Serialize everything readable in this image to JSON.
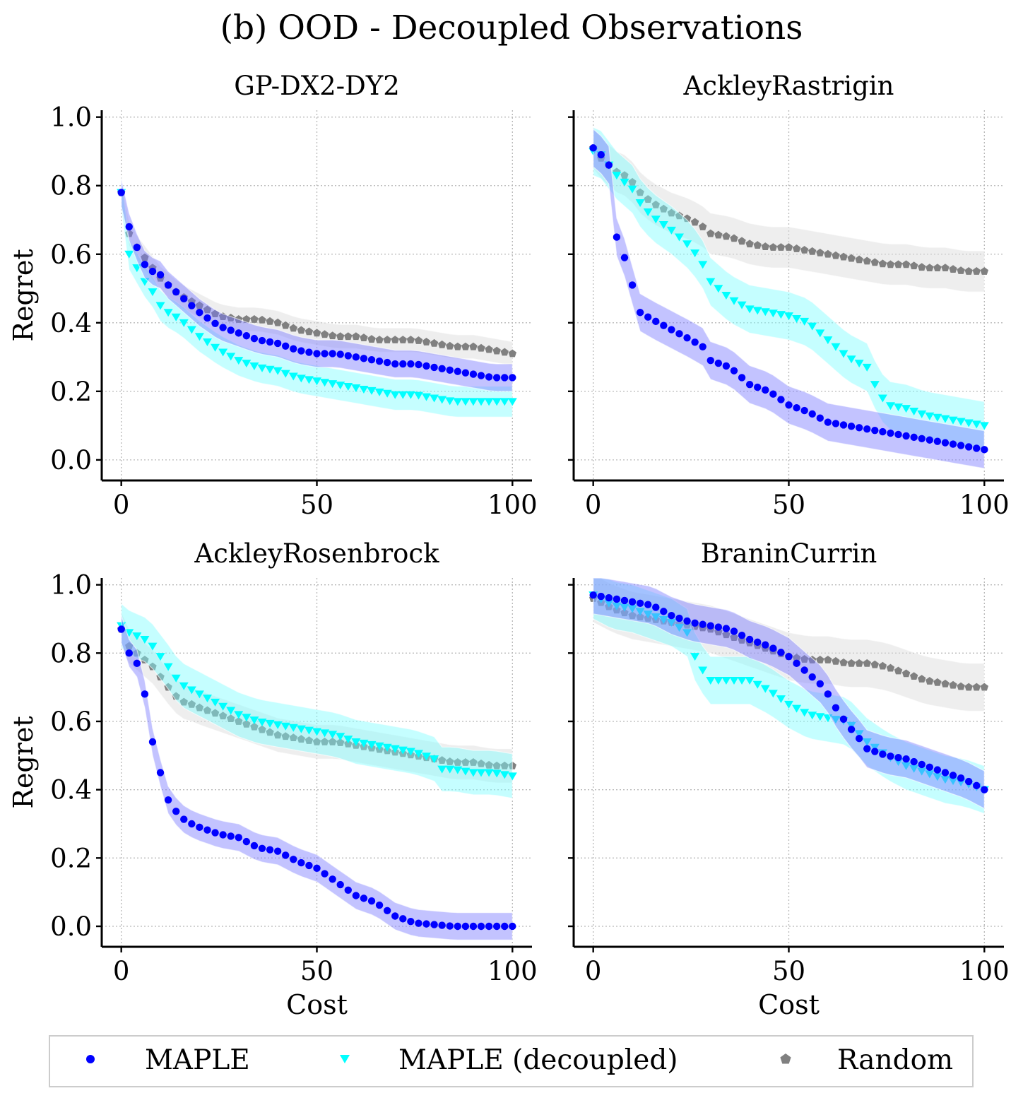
{
  "chart_data": {
    "type": "line",
    "title": "(b) OOD - Decoupled Observations",
    "xlabel": "Cost",
    "ylabel": "Regret",
    "xlim": [
      -5,
      105
    ],
    "ylim": [
      -0.06,
      1.02
    ],
    "xticks": [
      0,
      50,
      100
    ],
    "xtick_labels": [
      "0",
      "50",
      "100"
    ],
    "yticks": [
      0.0,
      0.2,
      0.4,
      0.6,
      0.8,
      1.0
    ],
    "ytick_labels": [
      "0.0",
      "0.2",
      "0.4",
      "0.6",
      "0.8",
      "1.0"
    ],
    "grid": true,
    "legend": {
      "position": "bottom-center",
      "entries": [
        {
          "name": "MAPLE",
          "color": "#0000ff",
          "marker": "circle"
        },
        {
          "name": "MAPLE (decoupled)",
          "color": "#00ffff",
          "marker": "triangle-down"
        },
        {
          "name": "Random",
          "color": "#808080",
          "marker": "pentagon"
        }
      ]
    },
    "panels": [
      {
        "title": "GP-DX2-DY2",
        "series": [
          {
            "name": "MAPLE",
            "color": "#0000ff",
            "band_color": "#7b7bff",
            "band": 0.04,
            "x": [
              0,
              2,
              4,
              6,
              8,
              10,
              12,
              15,
              18,
              20,
              25,
              30,
              35,
              40,
              45,
              50,
              55,
              60,
              65,
              70,
              75,
              80,
              85,
              90,
              95,
              100
            ],
            "y": [
              0.78,
              0.68,
              0.62,
              0.57,
              0.55,
              0.54,
              0.51,
              0.48,
              0.45,
              0.43,
              0.39,
              0.37,
              0.35,
              0.34,
              0.32,
              0.31,
              0.31,
              0.3,
              0.29,
              0.28,
              0.28,
              0.27,
              0.26,
              0.25,
              0.24,
              0.24
            ]
          },
          {
            "name": "MAPLE (decoupled)",
            "color": "#00ffff",
            "band_color": "#7ffcff",
            "band": 0.045,
            "x": [
              0,
              1,
              2,
              4,
              5,
              6,
              8,
              10,
              12,
              15,
              20,
              25,
              30,
              35,
              40,
              45,
              50,
              55,
              60,
              65,
              70,
              75,
              80,
              85,
              90,
              95,
              100
            ],
            "y": [
              0.78,
              0.67,
              0.6,
              0.56,
              0.54,
              0.52,
              0.49,
              0.45,
              0.43,
              0.41,
              0.36,
              0.32,
              0.29,
              0.27,
              0.26,
              0.24,
              0.23,
              0.22,
              0.21,
              0.2,
              0.19,
              0.19,
              0.18,
              0.17,
              0.17,
              0.17,
              0.17
            ]
          },
          {
            "name": "Random",
            "color": "#808080",
            "band_color": "#d9d9d9",
            "band": 0.035,
            "x": [
              0,
              2,
              4,
              6,
              8,
              10,
              15,
              20,
              25,
              30,
              35,
              40,
              45,
              50,
              55,
              60,
              65,
              70,
              75,
              80,
              85,
              90,
              95,
              100
            ],
            "y": [
              0.78,
              0.66,
              0.62,
              0.59,
              0.56,
              0.53,
              0.48,
              0.45,
              0.42,
              0.41,
              0.41,
              0.4,
              0.38,
              0.37,
              0.36,
              0.36,
              0.35,
              0.35,
              0.35,
              0.34,
              0.33,
              0.33,
              0.32,
              0.31
            ]
          }
        ]
      },
      {
        "title": "AckleyRastrigin",
        "series": [
          {
            "name": "MAPLE",
            "color": "#0000ff",
            "band_color": "#7b7bff",
            "band": 0.055,
            "x": [
              0,
              2,
              4,
              6,
              8,
              10,
              12,
              15,
              20,
              25,
              28,
              30,
              35,
              40,
              45,
              50,
              55,
              60,
              65,
              70,
              75,
              80,
              85,
              90,
              95,
              100
            ],
            "y": [
              0.91,
              0.89,
              0.86,
              0.65,
              0.59,
              0.51,
              0.43,
              0.41,
              0.38,
              0.35,
              0.33,
              0.29,
              0.27,
              0.22,
              0.2,
              0.16,
              0.14,
              0.11,
              0.1,
              0.09,
              0.08,
              0.07,
              0.06,
              0.05,
              0.04,
              0.03
            ]
          },
          {
            "name": "MAPLE (decoupled)",
            "color": "#00ffff",
            "band_color": "#7ffcff",
            "band": 0.07,
            "x": [
              0,
              2,
              4,
              6,
              8,
              10,
              12,
              15,
              20,
              25,
              28,
              30,
              35,
              40,
              45,
              50,
              55,
              60,
              65,
              70,
              72,
              75,
              80,
              85,
              90,
              95,
              100
            ],
            "y": [
              0.9,
              0.89,
              0.86,
              0.83,
              0.81,
              0.79,
              0.75,
              0.71,
              0.67,
              0.62,
              0.57,
              0.52,
              0.47,
              0.44,
              0.43,
              0.42,
              0.4,
              0.35,
              0.3,
              0.27,
              0.22,
              0.16,
              0.15,
              0.13,
              0.12,
              0.11,
              0.1
            ]
          },
          {
            "name": "Random",
            "color": "#808080",
            "band_color": "#d9d9d9",
            "band": 0.06,
            "x": [
              0,
              2,
              4,
              6,
              8,
              10,
              12,
              15,
              20,
              25,
              28,
              30,
              35,
              40,
              45,
              50,
              55,
              60,
              65,
              70,
              75,
              80,
              85,
              90,
              95,
              100
            ],
            "y": [
              0.91,
              0.88,
              0.86,
              0.84,
              0.83,
              0.81,
              0.78,
              0.75,
              0.72,
              0.7,
              0.68,
              0.66,
              0.65,
              0.63,
              0.62,
              0.62,
              0.61,
              0.6,
              0.59,
              0.58,
              0.57,
              0.57,
              0.56,
              0.56,
              0.55,
              0.55
            ]
          }
        ]
      },
      {
        "title": "AckleyRosenbrock",
        "series": [
          {
            "name": "MAPLE",
            "color": "#0000ff",
            "band_color": "#7b7bff",
            "band": 0.04,
            "x": [
              0,
              2,
              4,
              6,
              8,
              10,
              12,
              15,
              18,
              20,
              25,
              30,
              35,
              40,
              45,
              50,
              55,
              60,
              65,
              70,
              75,
              80,
              85,
              90,
              95,
              100
            ],
            "y": [
              0.87,
              0.8,
              0.77,
              0.68,
              0.54,
              0.45,
              0.37,
              0.32,
              0.3,
              0.29,
              0.27,
              0.26,
              0.23,
              0.22,
              0.19,
              0.17,
              0.13,
              0.09,
              0.07,
              0.03,
              0.01,
              0.005,
              0.0,
              0.0,
              0.0,
              0.0
            ]
          },
          {
            "name": "MAPLE (decoupled)",
            "color": "#00ffff",
            "band_color": "#7ffcff",
            "band": 0.065,
            "x": [
              0,
              2,
              4,
              6,
              8,
              10,
              12,
              15,
              20,
              25,
              30,
              35,
              40,
              45,
              50,
              55,
              60,
              65,
              70,
              75,
              80,
              82,
              85,
              90,
              95,
              100
            ],
            "y": [
              0.88,
              0.86,
              0.85,
              0.84,
              0.82,
              0.79,
              0.76,
              0.71,
              0.68,
              0.65,
              0.62,
              0.6,
              0.59,
              0.58,
              0.57,
              0.56,
              0.54,
              0.53,
              0.52,
              0.51,
              0.49,
              0.46,
              0.46,
              0.45,
              0.45,
              0.44
            ]
          },
          {
            "name": "Random",
            "color": "#808080",
            "band_color": "#d9d9d9",
            "band": 0.05,
            "x": [
              0,
              2,
              4,
              6,
              8,
              10,
              12,
              15,
              18,
              20,
              25,
              30,
              35,
              40,
              45,
              50,
              55,
              60,
              65,
              70,
              75,
              80,
              85,
              90,
              95,
              100
            ],
            "y": [
              0.87,
              0.82,
              0.8,
              0.78,
              0.76,
              0.73,
              0.7,
              0.66,
              0.65,
              0.64,
              0.62,
              0.6,
              0.58,
              0.56,
              0.55,
              0.54,
              0.54,
              0.53,
              0.52,
              0.51,
              0.5,
              0.49,
              0.48,
              0.48,
              0.47,
              0.47
            ]
          }
        ]
      },
      {
        "title": "BraninCurrin",
        "series": [
          {
            "name": "MAPLE",
            "color": "#0000ff",
            "band_color": "#7b7bff",
            "band": 0.055,
            "x": [
              0,
              5,
              10,
              15,
              20,
              25,
              30,
              35,
              40,
              45,
              50,
              52,
              55,
              58,
              60,
              62,
              65,
              68,
              70,
              75,
              80,
              85,
              90,
              95,
              100
            ],
            "y": [
              0.97,
              0.96,
              0.95,
              0.94,
              0.91,
              0.89,
              0.88,
              0.87,
              0.84,
              0.82,
              0.79,
              0.77,
              0.74,
              0.71,
              0.68,
              0.64,
              0.59,
              0.55,
              0.52,
              0.5,
              0.49,
              0.47,
              0.45,
              0.43,
              0.4
            ]
          },
          {
            "name": "MAPLE (decoupled)",
            "color": "#00ffff",
            "band_color": "#7ffcff",
            "band": 0.07,
            "x": [
              0,
              5,
              10,
              15,
              20,
              24,
              26,
              28,
              30,
              35,
              40,
              45,
              50,
              55,
              60,
              65,
              70,
              75,
              80,
              85,
              90,
              95,
              100
            ],
            "y": [
              0.97,
              0.94,
              0.93,
              0.91,
              0.89,
              0.86,
              0.79,
              0.75,
              0.72,
              0.72,
              0.72,
              0.69,
              0.65,
              0.62,
              0.61,
              0.6,
              0.54,
              0.5,
              0.47,
              0.45,
              0.43,
              0.42,
              0.4
            ]
          },
          {
            "name": "Random",
            "color": "#808080",
            "band_color": "#d9d9d9",
            "band": 0.07,
            "x": [
              0,
              5,
              10,
              15,
              20,
              25,
              30,
              35,
              40,
              45,
              50,
              55,
              60,
              65,
              70,
              75,
              80,
              85,
              90,
              95,
              100
            ],
            "y": [
              0.96,
              0.93,
              0.91,
              0.9,
              0.89,
              0.88,
              0.87,
              0.85,
              0.83,
              0.81,
              0.79,
              0.78,
              0.78,
              0.77,
              0.77,
              0.76,
              0.74,
              0.72,
              0.71,
              0.7,
              0.7
            ]
          }
        ]
      }
    ]
  }
}
